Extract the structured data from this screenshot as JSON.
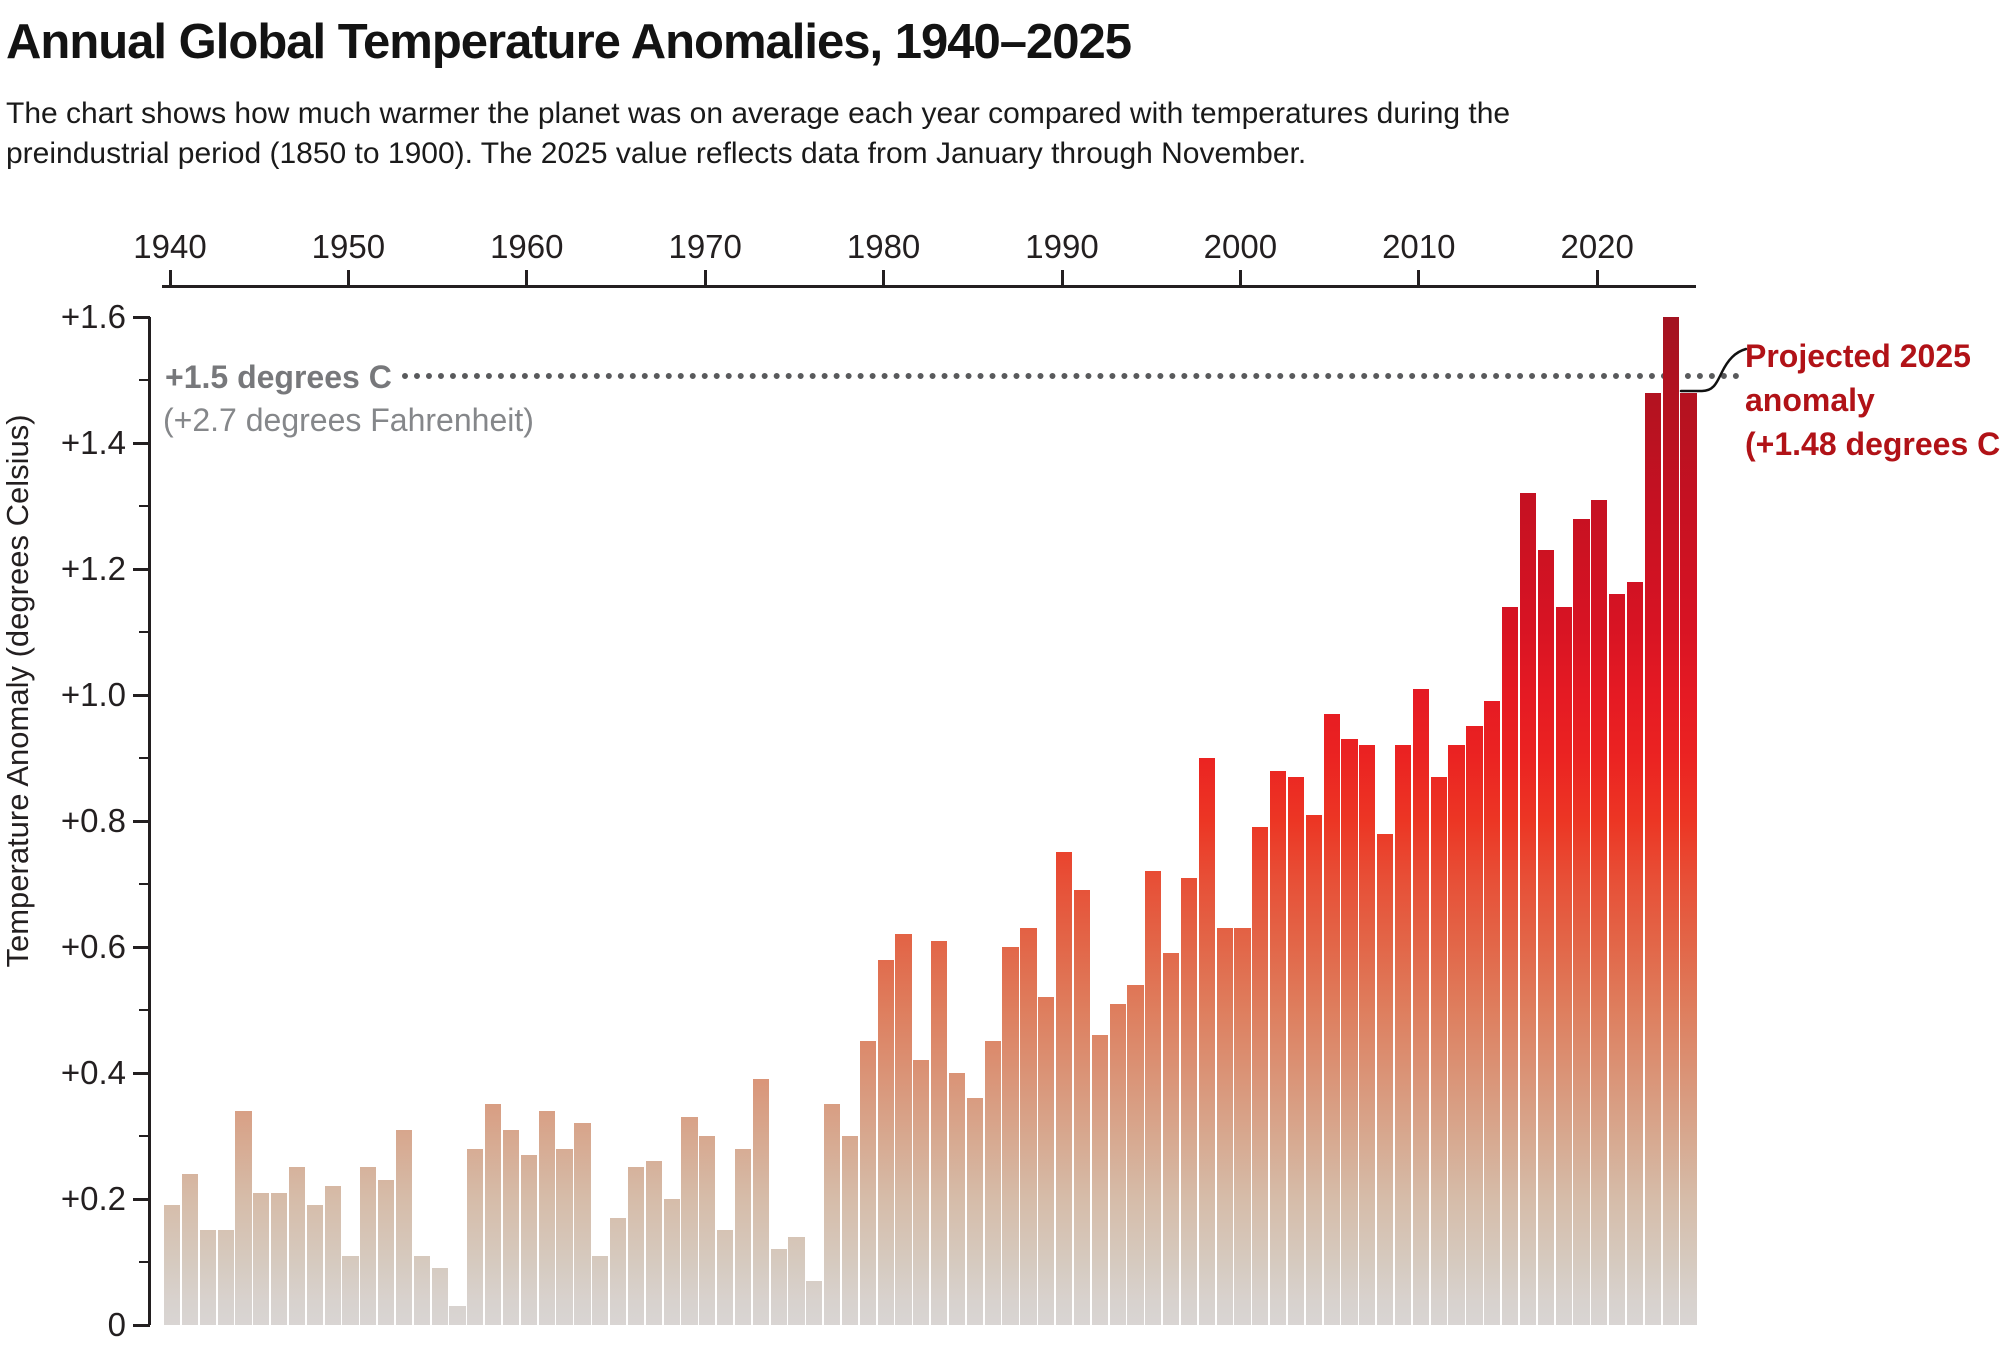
{
  "header": {
    "title": "Annual Global Temperature Anomalies, 1940–2025",
    "subtitle_line1": "The chart shows how much warmer the planet was on average each year compared with temperatures during the",
    "subtitle_line2": "preindustrial period (1850 to 1900). The 2025 value reflects data from January through November."
  },
  "threshold": {
    "value": 1.5,
    "label_bold": "+1.5 degrees C",
    "label_sub": "(+2.7 degrees Fahrenheit)",
    "line_color": "#595a5c",
    "label_color": "#77787b"
  },
  "annotation": {
    "lines": [
      "Projected 2025",
      "anomaly",
      "(+1.48 degrees C)"
    ],
    "color": "#b11217",
    "points_to_year": 2025
  },
  "colors": {
    "text": "#141414",
    "axis": "#231f20",
    "bar_top_dark_red": "#a31321",
    "bar_bright_red": "#e51a23",
    "bar_orange": "#e26749",
    "bar_salmon": "#da9376",
    "bar_bottom_gray": "#d9d5d3",
    "background": "#ffffff"
  },
  "chart_data": {
    "type": "bar",
    "title": "Annual Global Temperature Anomalies, 1940–2025",
    "xlabel": "",
    "ylabel": "Temperature Anomaly (degrees Celsius)",
    "ylim": [
      0,
      1.6
    ],
    "y_major_step": 0.2,
    "y_minor_step": 0.1,
    "grid": false,
    "legend": "none",
    "x_axis_position": "top",
    "y_tick_labels": [
      "+1.6",
      "+1.4",
      "+1.2",
      "+1.0",
      "+0.8",
      "+0.6",
      "+0.4",
      "+0.2",
      "0"
    ],
    "x_tick_labels": [
      "1940",
      "1950",
      "1960",
      "1970",
      "1980",
      "1990",
      "2000",
      "2010",
      "2020"
    ],
    "years": [
      1940,
      1941,
      1942,
      1943,
      1944,
      1945,
      1946,
      1947,
      1948,
      1949,
      1950,
      1951,
      1952,
      1953,
      1954,
      1955,
      1956,
      1957,
      1958,
      1959,
      1960,
      1961,
      1962,
      1963,
      1964,
      1965,
      1966,
      1967,
      1968,
      1969,
      1970,
      1971,
      1972,
      1973,
      1974,
      1975,
      1976,
      1977,
      1978,
      1979,
      1980,
      1981,
      1982,
      1983,
      1984,
      1985,
      1986,
      1987,
      1988,
      1989,
      1990,
      1991,
      1992,
      1993,
      1994,
      1995,
      1996,
      1997,
      1998,
      1999,
      2000,
      2001,
      2002,
      2003,
      2004,
      2005,
      2006,
      2007,
      2008,
      2009,
      2010,
      2011,
      2012,
      2013,
      2014,
      2015,
      2016,
      2017,
      2018,
      2019,
      2020,
      2021,
      2022,
      2023,
      2024,
      2025
    ],
    "values": [
      0.19,
      0.24,
      0.15,
      0.15,
      0.34,
      0.21,
      0.21,
      0.25,
      0.19,
      0.22,
      0.11,
      0.25,
      0.23,
      0.31,
      0.11,
      0.09,
      0.03,
      0.28,
      0.35,
      0.31,
      0.27,
      0.34,
      0.28,
      0.32,
      0.11,
      0.17,
      0.25,
      0.26,
      0.2,
      0.33,
      0.3,
      0.15,
      0.28,
      0.39,
      0.12,
      0.14,
      0.07,
      0.35,
      0.3,
      0.45,
      0.58,
      0.62,
      0.42,
      0.61,
      0.4,
      0.36,
      0.45,
      0.6,
      0.63,
      0.52,
      0.75,
      0.69,
      0.46,
      0.51,
      0.54,
      0.72,
      0.59,
      0.71,
      0.9,
      0.63,
      0.63,
      0.79,
      0.88,
      0.87,
      0.81,
      0.97,
      0.93,
      0.92,
      0.78,
      0.92,
      1.01,
      0.87,
      0.92,
      0.95,
      0.99,
      1.14,
      1.32,
      1.23,
      1.14,
      1.28,
      1.31,
      1.16,
      1.18,
      1.48,
      1.6,
      1.48
    ]
  }
}
